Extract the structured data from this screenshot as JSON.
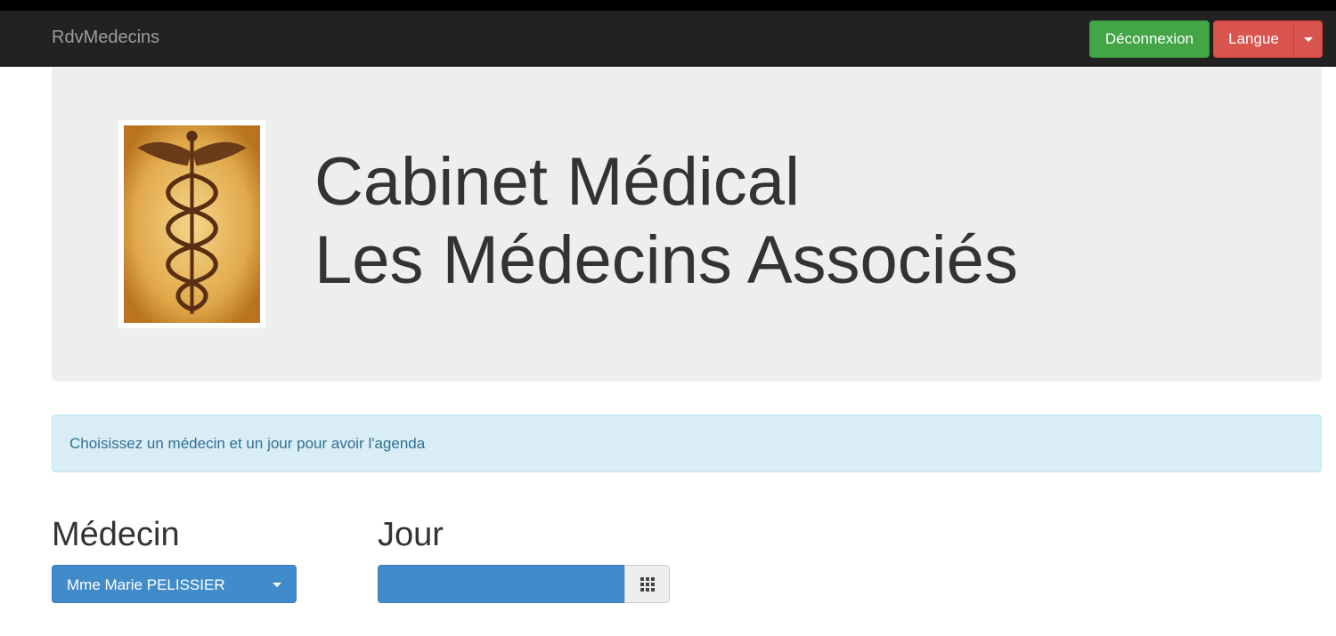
{
  "navbar": {
    "brand": "RdvMedecins",
    "logout_label": "Déconnexion",
    "language_label": "Langue"
  },
  "jumbotron": {
    "title_line1": "Cabinet Médical",
    "title_line2": "Les Médecins Associés",
    "logo_icon": "caduceus-icon"
  },
  "alert": {
    "message": "Choisissez un médecin et un jour pour avoir l'agenda"
  },
  "form": {
    "doctor_label": "Médecin",
    "doctor_selected": "Mme Marie PELISSIER",
    "day_label": "Jour",
    "day_value": "",
    "calendar_icon": "calendar-grid-icon"
  },
  "colors": {
    "navbar": "#222222",
    "success": "#43a546",
    "danger": "#d9534f",
    "primary": "#428bca",
    "info_bg": "#d9edf7"
  }
}
